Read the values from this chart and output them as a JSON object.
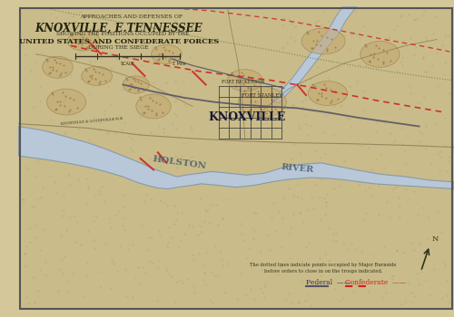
{
  "title_line1": "APPROACHES AND DEFENSES OF",
  "title_line2": "KNOXVILLE, E.TENNESSEE",
  "title_line3": "SHOWING THE POSITIONS OCCUPIED BY THE",
  "title_line4": "UNITED STATES AND CONFEDERATE FORCES",
  "title_line5": "DURING THE SIEGE",
  "bg_color": "#d4c89a",
  "map_bg": "#c9bc8a",
  "border_color": "#555555",
  "river_color": "#b8c8d8",
  "river_edge_color": "#8899aa",
  "federal_line_color": "#555566",
  "confederate_line_color": "#cc2222",
  "text_color": "#333322",
  "knoxville_label": "KNOXVILLE",
  "river_label": "HOLSTON",
  "river_label2": "RIVER",
  "legend_federal": "Federal ——",
  "legend_confederate": "Confederate ——"
}
